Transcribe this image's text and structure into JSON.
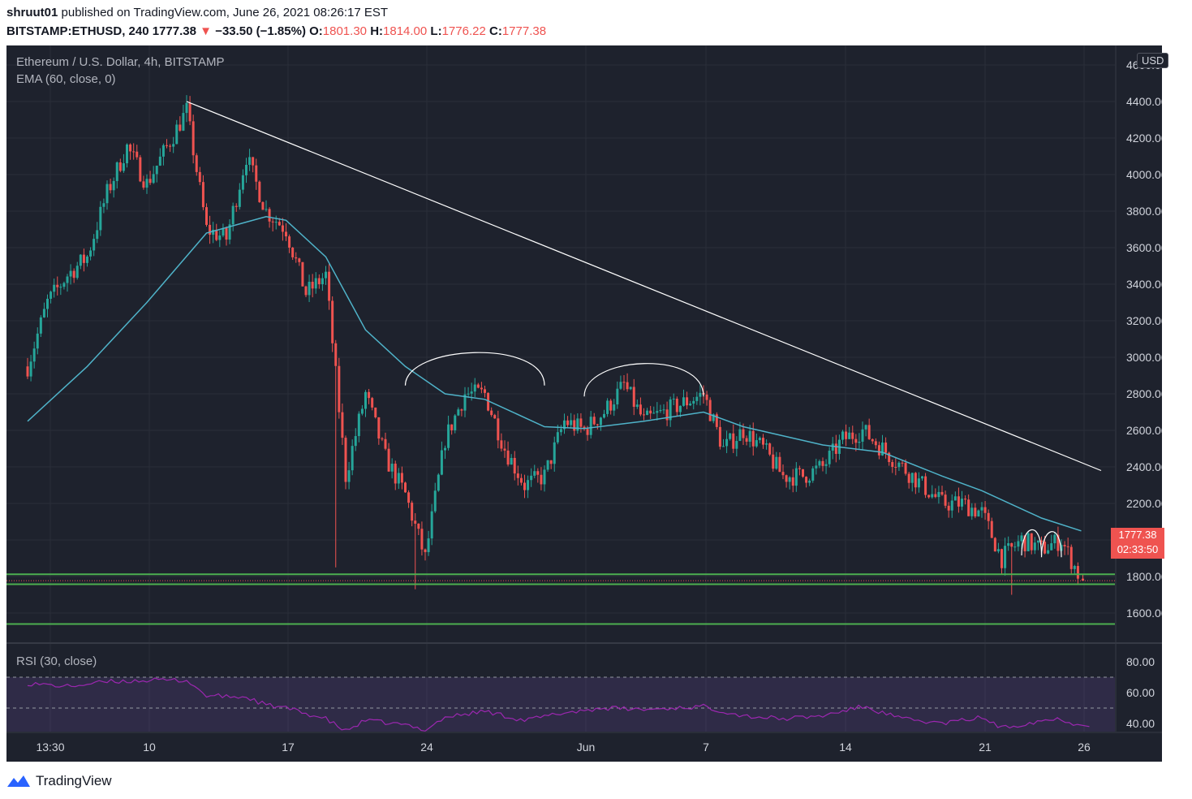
{
  "header": {
    "user": "shruut01",
    "published_text": "published on TradingView.com, June 26, 2021 08:26:17 EST"
  },
  "ohlc": {
    "symbol": "BITSTAMP:ETHUSD, 240",
    "last": "1777.38",
    "arrow": "▼",
    "change": "−33.50 (−1.85%)",
    "o_label": "O:",
    "o": "1801.30",
    "h_label": "H:",
    "h": "1814.00",
    "l_label": "L:",
    "l": "1776.22",
    "c_label": "C:",
    "c": "1777.38"
  },
  "legend": {
    "title": "Ethereum / U.S. Dollar, 4h, BITSTAMP",
    "ema": "EMA (60, close, 0)",
    "rsi": "RSI (30, close)"
  },
  "currency_badge": "USD",
  "price_tag": {
    "price": "1777.38",
    "countdown": "02:33:50"
  },
  "footer": {
    "brand": "TradingView",
    "logo_icon": "tradingview-logo-icon"
  },
  "colors": {
    "background": "#1e222d",
    "up": "#26a69a",
    "down": "#ef5350",
    "ema": "#4fb3c9",
    "rsi": "#9c27b0",
    "support": "#4caf50",
    "trendline": "#ffffff"
  },
  "chart_data": [
    {
      "type": "candlestick",
      "title": "Ethereum / U.S. Dollar, 4h, BITSTAMP",
      "ylabel": "USD",
      "ylim": [
        1540,
        4700
      ],
      "y_ticks": [
        "4600.00",
        "4400.00",
        "4200.00",
        "4000.00",
        "3800.00",
        "3600.00",
        "3400.00",
        "3200.00",
        "3000.00",
        "2800.00",
        "2600.00",
        "2400.00",
        "2200.00",
        "2000.00",
        "1800.00",
        "1600.00"
      ],
      "x_tick_labels": [
        "13:30",
        "10",
        "17",
        "24",
        "Jun",
        "7",
        "14",
        "21",
        "26"
      ],
      "grid": true,
      "price_path": [
        {
          "d": "May 4",
          "c": 2950
        },
        {
          "d": "May 5",
          "c": 3300
        },
        {
          "d": "May 6",
          "c": 3450
        },
        {
          "d": "May 7",
          "c": 3550
        },
        {
          "d": "May 8",
          "c": 3900
        },
        {
          "d": "May 9",
          "c": 4150
        },
        {
          "d": "May 10",
          "c": 3950
        },
        {
          "d": "May 11",
          "c": 4150
        },
        {
          "d": "May 12",
          "c": 4350
        },
        {
          "d": "May 13",
          "c": 3700
        },
        {
          "d": "May 14",
          "c": 3650
        },
        {
          "d": "May 15",
          "c": 4100
        },
        {
          "d": "May 16",
          "c": 3800
        },
        {
          "d": "May 17",
          "c": 3700
        },
        {
          "d": "May 18",
          "c": 3350
        },
        {
          "d": "May 19",
          "c": 3450
        },
        {
          "d": "May 20",
          "c": 2350
        },
        {
          "d": "May 21",
          "c": 2800
        },
        {
          "d": "May 22",
          "c": 2450
        },
        {
          "d": "May 23",
          "c": 2250
        },
        {
          "d": "May 24",
          "c": 1900
        },
        {
          "d": "May 25",
          "c": 2550
        },
        {
          "d": "May 26",
          "c": 2800
        },
        {
          "d": "May 27",
          "c": 2800
        },
        {
          "d": "May 28",
          "c": 2500
        },
        {
          "d": "May 29",
          "c": 2300
        },
        {
          "d": "May 30",
          "c": 2350
        },
        {
          "d": "May 31",
          "c": 2650
        },
        {
          "d": "Jun 1",
          "c": 2600
        },
        {
          "d": "Jun 2",
          "c": 2700
        },
        {
          "d": "Jun 3",
          "c": 2850
        },
        {
          "d": "Jun 4",
          "c": 2650
        },
        {
          "d": "Jun 5",
          "c": 2700
        },
        {
          "d": "Jun 6",
          "c": 2750
        },
        {
          "d": "Jun 7",
          "c": 2800
        },
        {
          "d": "Jun 8",
          "c": 2500
        },
        {
          "d": "Jun 9",
          "c": 2600
        },
        {
          "d": "Jun 10",
          "c": 2500
        },
        {
          "d": "Jun 11",
          "c": 2350
        },
        {
          "d": "Jun 12",
          "c": 2350
        },
        {
          "d": "Jun 13",
          "c": 2400
        },
        {
          "d": "Jun 14",
          "c": 2550
        },
        {
          "d": "Jun 15",
          "c": 2600
        },
        {
          "d": "Jun 16",
          "c": 2500
        },
        {
          "d": "Jun 17",
          "c": 2400
        },
        {
          "d": "Jun 18",
          "c": 2300
        },
        {
          "d": "Jun 19",
          "c": 2200
        },
        {
          "d": "Jun 20",
          "c": 2200
        },
        {
          "d": "Jun 21",
          "c": 2150
        },
        {
          "d": "Jun 22",
          "c": 1900
        },
        {
          "d": "Jun 23",
          "c": 2000
        },
        {
          "d": "Jun 24",
          "c": 1950
        },
        {
          "d": "Jun 25",
          "c": 2000
        },
        {
          "d": "Jun 26",
          "c": 1780
        }
      ],
      "wick_spikes": [
        {
          "d": "May 19",
          "low": 1850
        },
        {
          "d": "May 23",
          "low": 1730
        },
        {
          "d": "Jun 22",
          "low": 1700
        }
      ],
      "ema_path": [
        {
          "d": "May 4",
          "v": 2650
        },
        {
          "d": "May 7",
          "v": 2950
        },
        {
          "d": "May 10",
          "v": 3300
        },
        {
          "d": "May 13",
          "v": 3680
        },
        {
          "d": "May 15",
          "v": 3740
        },
        {
          "d": "May 16",
          "v": 3770
        },
        {
          "d": "May 17",
          "v": 3750
        },
        {
          "d": "May 19",
          "v": 3550
        },
        {
          "d": "May 21",
          "v": 3150
        },
        {
          "d": "May 23",
          "v": 2950
        },
        {
          "d": "May 25",
          "v": 2800
        },
        {
          "d": "May 27",
          "v": 2770
        },
        {
          "d": "May 30",
          "v": 2620
        },
        {
          "d": "Jun 1",
          "v": 2610
        },
        {
          "d": "Jun 4",
          "v": 2650
        },
        {
          "d": "Jun 7",
          "v": 2700
        },
        {
          "d": "Jun 9",
          "v": 2620
        },
        {
          "d": "Jun 13",
          "v": 2520
        },
        {
          "d": "Jun 16",
          "v": 2480
        },
        {
          "d": "Jun 19",
          "v": 2350
        },
        {
          "d": "Jun 21",
          "v": 2270
        },
        {
          "d": "Jun 24",
          "v": 2120
        },
        {
          "d": "Jun 26",
          "v": 2050
        }
      ],
      "trendline": [
        {
          "d": "May 12",
          "v": 4400
        },
        {
          "d": "Jun 27",
          "v": 2380
        }
      ],
      "support_lines": [
        1812,
        1758,
        1540
      ],
      "annotations": [
        {
          "type": "arc",
          "from": "May 23",
          "to": "May 30",
          "level": 2970
        },
        {
          "type": "arc",
          "from": "Jun 1",
          "to": "Jun 7",
          "level": 2910
        },
        {
          "type": "arc",
          "from": "Jun 23",
          "to": "Jun 24",
          "level": 2040
        },
        {
          "type": "arc",
          "from": "Jun 24",
          "to": "Jun 25",
          "level": 2030
        }
      ]
    },
    {
      "type": "line",
      "title": "RSI (30, close)",
      "ylim": [
        25,
        82
      ],
      "y_ticks": [
        "80.00",
        "60.00",
        "40.00"
      ],
      "bands": [
        70,
        50,
        30
      ],
      "path": [
        {
          "d": "May 4",
          "v": 66
        },
        {
          "d": "May 6",
          "v": 64
        },
        {
          "d": "May 8",
          "v": 67
        },
        {
          "d": "May 10",
          "v": 68
        },
        {
          "d": "May 12",
          "v": 68
        },
        {
          "d": "May 13",
          "v": 58
        },
        {
          "d": "May 15",
          "v": 57
        },
        {
          "d": "May 16",
          "v": 52
        },
        {
          "d": "May 17",
          "v": 50
        },
        {
          "d": "May 19",
          "v": 43
        },
        {
          "d": "May 20",
          "v": 35
        },
        {
          "d": "May 21",
          "v": 42
        },
        {
          "d": "May 23",
          "v": 39
        },
        {
          "d": "May 24",
          "v": 36
        },
        {
          "d": "May 25",
          "v": 44
        },
        {
          "d": "May 27",
          "v": 48
        },
        {
          "d": "May 29",
          "v": 42
        },
        {
          "d": "May 31",
          "v": 47
        },
        {
          "d": "Jun 2",
          "v": 50
        },
        {
          "d": "Jun 4",
          "v": 49
        },
        {
          "d": "Jun 7",
          "v": 51
        },
        {
          "d": "Jun 9",
          "v": 45
        },
        {
          "d": "Jun 11",
          "v": 43
        },
        {
          "d": "Jun 13",
          "v": 45
        },
        {
          "d": "Jun 15",
          "v": 51
        },
        {
          "d": "Jun 17",
          "v": 43
        },
        {
          "d": "Jun 19",
          "v": 40
        },
        {
          "d": "Jun 21",
          "v": 44
        },
        {
          "d": "Jun 22",
          "v": 37
        },
        {
          "d": "Jun 24",
          "v": 42
        },
        {
          "d": "Jun 25",
          "v": 43
        },
        {
          "d": "Jun 26",
          "v": 38
        }
      ]
    }
  ]
}
